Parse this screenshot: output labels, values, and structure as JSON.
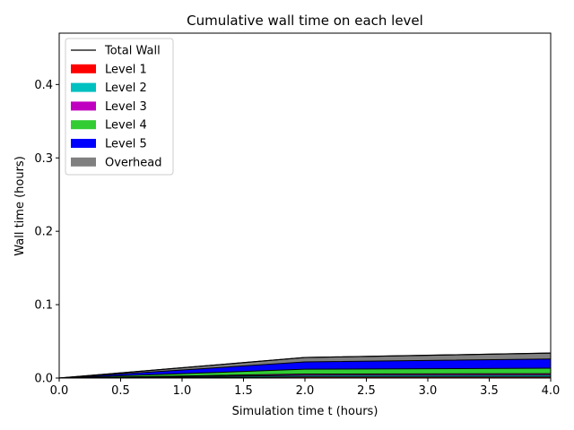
{
  "chart_data": {
    "type": "area",
    "title": "Cumulative wall time on each level",
    "xlabel": "Simulation time t (hours)",
    "ylabel": "Wall time (hours)",
    "xlim": [
      0.0,
      4.0
    ],
    "ylim": [
      0.0,
      0.47
    ],
    "xticks": [
      "0.0",
      "0.5",
      "1.0",
      "1.5",
      "2.0",
      "2.5",
      "3.0",
      "3.5",
      "4.0"
    ],
    "xtick_values": [
      0.0,
      0.5,
      1.0,
      1.5,
      2.0,
      2.5,
      3.0,
      3.5,
      4.0
    ],
    "yticks": [
      "0.0",
      "0.1",
      "0.2",
      "0.3",
      "0.4"
    ],
    "ytick_values": [
      0.0,
      0.1,
      0.2,
      0.3,
      0.4
    ],
    "grid": false,
    "legend_position": "top-left",
    "x": [
      0.0,
      2.0,
      4.0
    ],
    "series": [
      {
        "name": "Level 1",
        "color": "#ff0000",
        "values": [
          0.0,
          0.0015,
          0.0016
        ]
      },
      {
        "name": "Level 2",
        "color": "#00c0c0",
        "values": [
          0.0,
          0.0022,
          0.0024
        ]
      },
      {
        "name": "Level 3",
        "color": "#c000c0",
        "values": [
          0.0,
          0.0018,
          0.0019
        ]
      },
      {
        "name": "Level 4",
        "color": "#33cc33",
        "values": [
          0.0,
          0.0065,
          0.0075
        ]
      },
      {
        "name": "Level 5",
        "color": "#0000ff",
        "values": [
          0.0,
          0.01,
          0.0125
        ]
      },
      {
        "name": "Overhead",
        "color": "#808080",
        "values": [
          0.0,
          0.006,
          0.0081
        ]
      }
    ],
    "total_line": {
      "name": "Total Wall",
      "color": "#000000",
      "values": [
        0.0,
        0.028,
        0.034
      ]
    }
  }
}
